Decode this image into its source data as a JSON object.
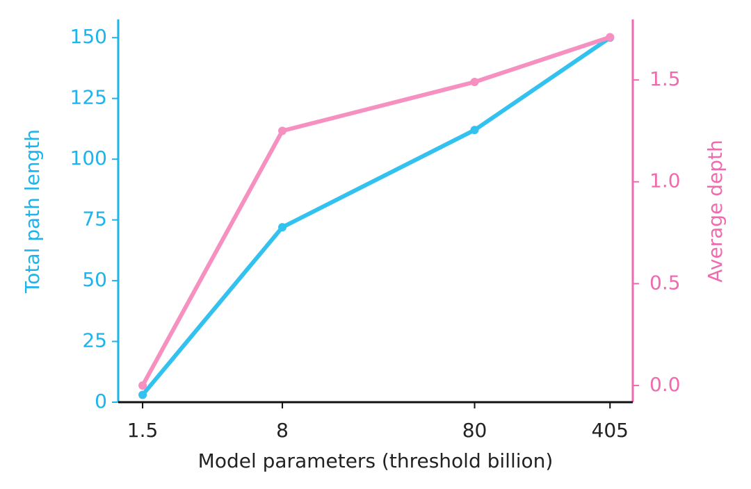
{
  "chart_data": {
    "type": "line",
    "xlabel": "Model parameters (threshold billion)",
    "ylabel": "Total path length",
    "y2label": "Average depth",
    "x": [
      1.5,
      8,
      80,
      405
    ],
    "xscale": "log",
    "xlim": [
      1.12,
      532
    ],
    "xticks": [
      1.5,
      8,
      80,
      405
    ],
    "ylim": [
      0,
      157.5
    ],
    "yticks": [
      0,
      25,
      50,
      75,
      100,
      125,
      150
    ],
    "y2lim": [
      -0.082,
      1.797
    ],
    "y2ticks": [
      {
        "value": 0,
        "label": "0.0"
      },
      0.5,
      {
        "value": 1,
        "label": "1.0"
      },
      1.5
    ],
    "ycolor": "#1cb4ec",
    "y2color": "#f06aae",
    "series": [
      {
        "color": "#33c2f0",
        "values": [
          3,
          72,
          112,
          150
        ]
      },
      {
        "color": "#f590c0",
        "axis": "y2",
        "values": [
          0,
          1.25,
          1.49,
          1.71
        ]
      }
    ]
  }
}
